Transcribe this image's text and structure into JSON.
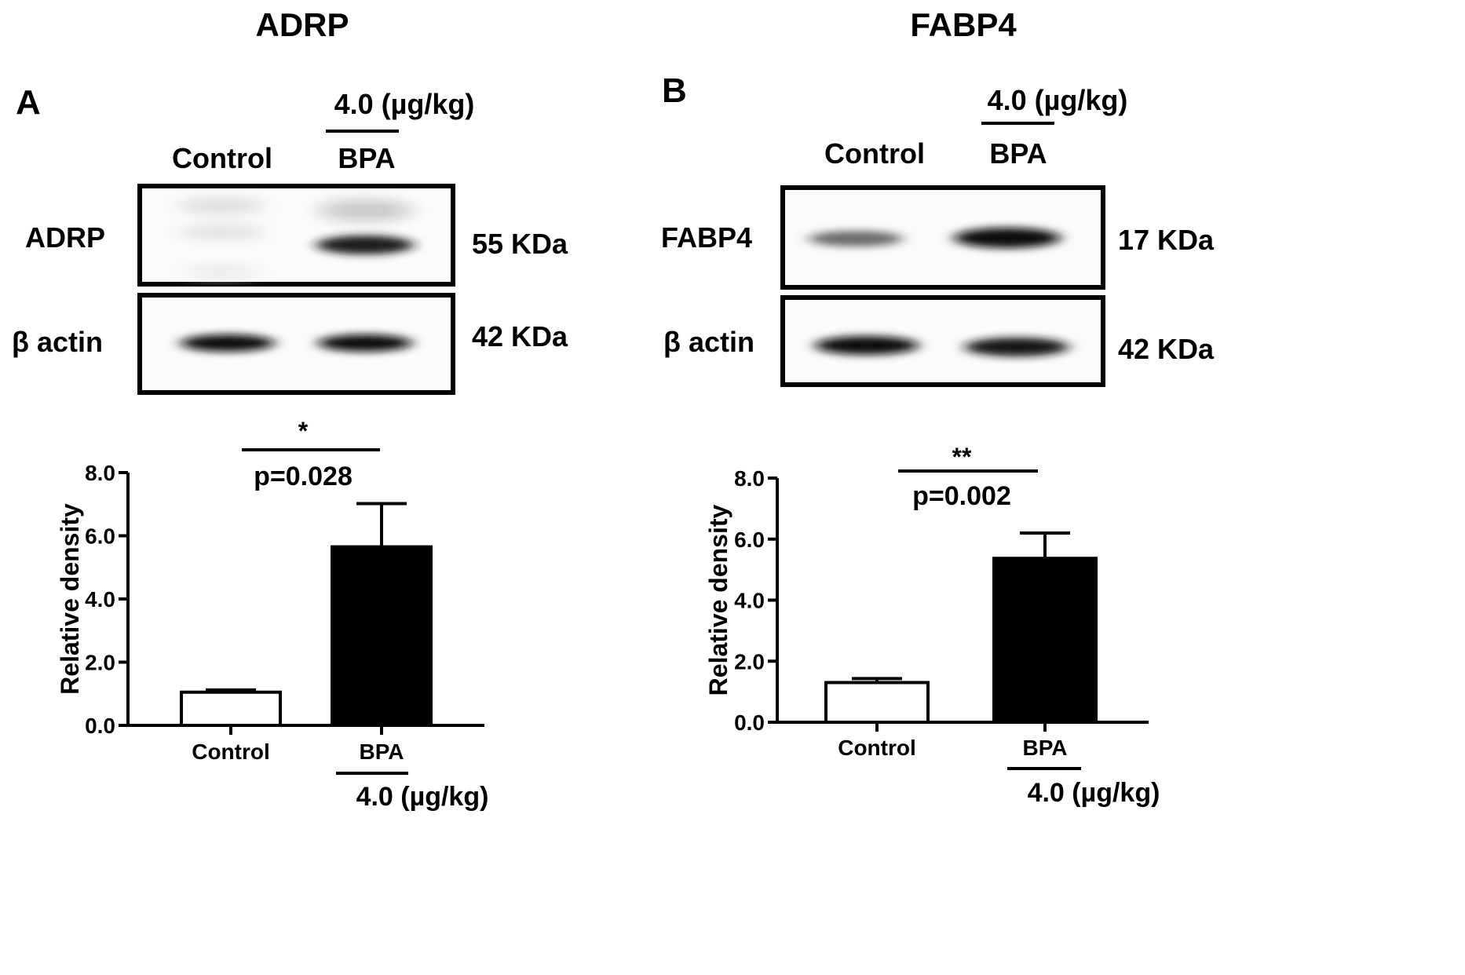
{
  "panels": [
    {
      "id": "A",
      "title": "ADRP",
      "panel_letter": "A",
      "dose_label_top": "4.0 (µg/kg)",
      "lane_labels": [
        "Control",
        "BPA"
      ],
      "blots": [
        {
          "label": "ADRP",
          "size": "55 KDa"
        },
        {
          "label": "β actin",
          "size": "42 KDa"
        }
      ],
      "significance": {
        "stars": "*",
        "pvalue": "p=0.028"
      },
      "dose_label_bottom": "4.0 (µg/kg)"
    },
    {
      "id": "B",
      "title": "FABP4",
      "panel_letter": "B",
      "dose_label_top": "4.0 (µg/kg)",
      "lane_labels": [
        "Control",
        "BPA"
      ],
      "blots": [
        {
          "label": "FABP4",
          "size": "17 KDa"
        },
        {
          "label": "β actin",
          "size": "42 KDa"
        }
      ],
      "significance": {
        "stars": "**",
        "pvalue": "p=0.002"
      },
      "dose_label_bottom": "4.0 (µg/kg)"
    }
  ],
  "chart_data": [
    {
      "type": "bar",
      "title": "",
      "xlabel": "",
      "ylabel": "Relative density",
      "categories": [
        "Control",
        "BPA"
      ],
      "values": [
        1.05,
        5.65
      ],
      "errors": [
        0.07,
        1.37
      ],
      "colors": [
        "#ffffff",
        "#000000"
      ],
      "ylim": [
        0.0,
        8.0
      ],
      "yticks": [
        "0.0",
        "2.0",
        "4.0",
        "6.0",
        "8.0"
      ]
    },
    {
      "type": "bar",
      "title": "",
      "xlabel": "",
      "ylabel": "Relative density",
      "categories": [
        "Control",
        "BPA"
      ],
      "values": [
        1.3,
        5.37
      ],
      "errors": [
        0.13,
        0.83
      ],
      "colors": [
        "#ffffff",
        "#000000"
      ],
      "ylim": [
        0.0,
        8.0
      ],
      "yticks": [
        "0.0",
        "2.0",
        "4.0",
        "6.0",
        "8.0"
      ]
    }
  ]
}
